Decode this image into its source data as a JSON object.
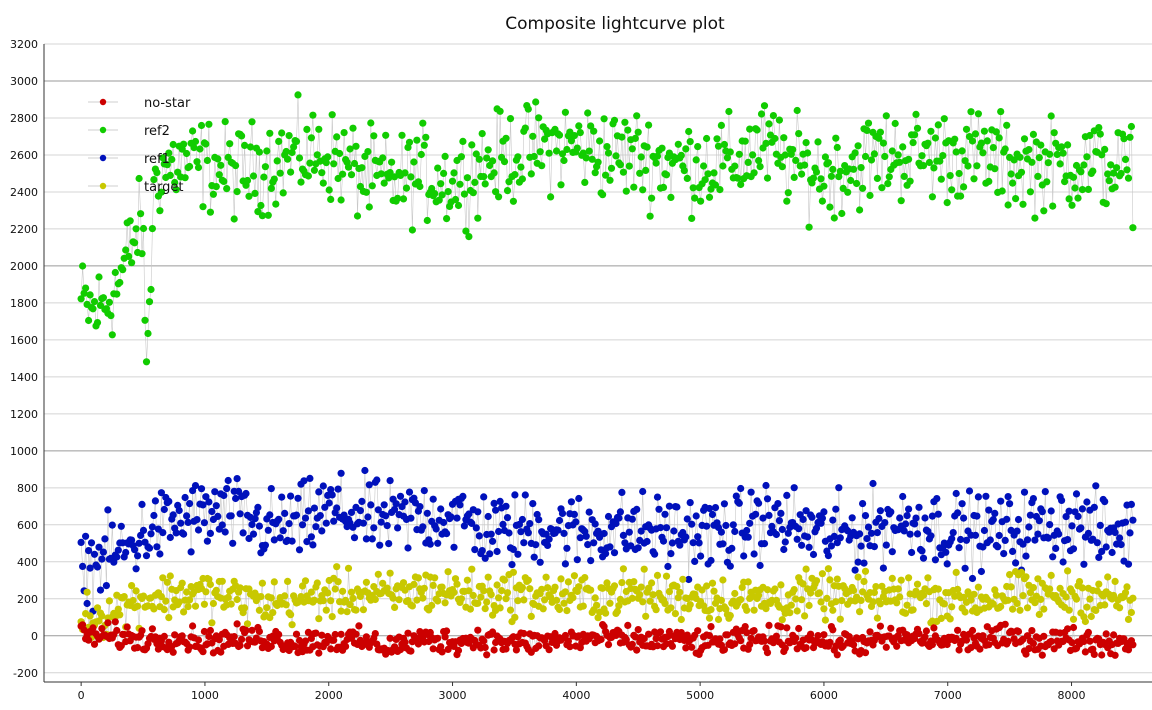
{
  "chart_data": {
    "type": "scatter",
    "title": "Composite lightcurve plot",
    "xlabel": "",
    "ylabel": "",
    "xlim": [
      -300,
      8650
    ],
    "ylim": [
      -250,
      3200
    ],
    "xticks": [
      0,
      1000,
      2000,
      3000,
      4000,
      5000,
      6000,
      7000,
      8000
    ],
    "yticks": [
      -200,
      0,
      200,
      400,
      600,
      800,
      1000,
      1200,
      1400,
      1600,
      1800,
      2000,
      2200,
      2400,
      2600,
      2800,
      3000,
      3200
    ],
    "grid": "horizontal",
    "connected_by_lines": true,
    "line_color": "#c8c8c8",
    "legend_position": "top-left",
    "series": [
      {
        "name": "no-star",
        "color": "#cc0000",
        "x": [
          0,
          250,
          500,
          750,
          1000,
          1250,
          1500,
          1750,
          2000,
          2250,
          2500,
          2750,
          3000,
          3250,
          3500,
          3750,
          4000,
          4250,
          4500,
          4750,
          5000,
          5250,
          5500,
          5750,
          6000,
          6250,
          6500,
          6750,
          7000,
          7250,
          7500,
          7750,
          8000,
          8250,
          8500
        ],
        "y": [
          0,
          0,
          -20,
          -10,
          -30,
          -20,
          -10,
          -40,
          -20,
          -30,
          -60,
          -20,
          -30,
          -20,
          -40,
          -30,
          -20,
          -10,
          -30,
          -20,
          -40,
          -30,
          -20,
          -10,
          -30,
          -40,
          -20,
          -10,
          -30,
          -20,
          -10,
          -30,
          -20,
          -40,
          -30
        ],
        "spread": 60
      },
      {
        "name": "ref2",
        "color": "#11cc00",
        "x": [
          0,
          100,
          200,
          300,
          400,
          500,
          520,
          600,
          750,
          1000,
          1250,
          1500,
          1750,
          2000,
          2250,
          2500,
          2750,
          3000,
          3250,
          3500,
          3750,
          4000,
          4250,
          4500,
          4750,
          5000,
          5250,
          5500,
          5750,
          6000,
          6250,
          6500,
          6750,
          7000,
          7250,
          7500,
          7750,
          8000,
          8250,
          8500
        ],
        "y": [
          1800,
          1750,
          1800,
          1900,
          2100,
          2250,
          1400,
          2500,
          2550,
          2550,
          2500,
          2550,
          2600,
          2600,
          2500,
          2450,
          2500,
          2450,
          2550,
          2600,
          2650,
          2650,
          2600,
          2600,
          2550,
          2550,
          2550,
          2650,
          2550,
          2500,
          2550,
          2600,
          2600,
          2600,
          2600,
          2550,
          2550,
          2550,
          2550,
          2500
        ],
        "spread": 220
      },
      {
        "name": "ref1",
        "color": "#0011bb",
        "x": [
          0,
          100,
          200,
          300,
          400,
          500,
          750,
          1000,
          1250,
          1500,
          1750,
          2000,
          2250,
          2500,
          2750,
          3000,
          3250,
          3500,
          3750,
          4000,
          4250,
          4500,
          4750,
          5000,
          5250,
          5500,
          5750,
          6000,
          6250,
          6500,
          6750,
          7000,
          7250,
          7500,
          7750,
          8000,
          8250,
          8500
        ],
        "y": [
          400,
          380,
          420,
          450,
          480,
          550,
          620,
          650,
          650,
          580,
          600,
          680,
          650,
          620,
          650,
          650,
          580,
          560,
          600,
          560,
          580,
          570,
          560,
          550,
          560,
          620,
          600,
          540,
          560,
          600,
          620,
          570,
          560,
          560,
          600,
          620,
          550,
          560
        ],
        "spread": 180
      },
      {
        "name": "target",
        "color": "#c8c800",
        "x": [
          0,
          100,
          200,
          300,
          400,
          500,
          750,
          1000,
          1250,
          1500,
          1750,
          2000,
          2250,
          2500,
          2750,
          3000,
          3250,
          3500,
          3750,
          4000,
          4250,
          4500,
          4750,
          5000,
          5250,
          5500,
          5750,
          6000,
          6250,
          6500,
          6750,
          7000,
          7250,
          7500,
          7750,
          8000,
          8250,
          8500
        ],
        "y": [
          120,
          100,
          110,
          150,
          180,
          200,
          220,
          230,
          200,
          180,
          190,
          220,
          230,
          210,
          250,
          240,
          220,
          230,
          220,
          210,
          220,
          230,
          210,
          220,
          190,
          200,
          210,
          220,
          200,
          210,
          220,
          200,
          200,
          210,
          220,
          220,
          210,
          190
        ],
        "spread": 110
      }
    ]
  }
}
